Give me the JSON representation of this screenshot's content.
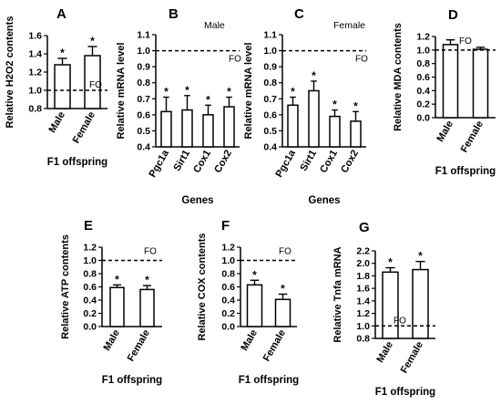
{
  "chart_data": [
    {
      "panel": "A",
      "type": "bar",
      "subtitle": "",
      "ylabel": "Relative H2O2 contents",
      "xlabel": "F1 offspring",
      "categories": [
        "Male",
        "Female"
      ],
      "values": [
        1.28,
        1.38
      ],
      "errors": [
        0.07,
        0.1
      ],
      "significance": [
        "*",
        "*"
      ],
      "ylim": [
        0.8,
        1.6
      ],
      "yticks": [
        "0.8",
        "1.0",
        "1.2",
        "1.4",
        "1.6"
      ],
      "reference_line": 1.0,
      "reference_label": "FO"
    },
    {
      "panel": "B",
      "type": "bar",
      "subtitle": "Male",
      "ylabel": "Relative mRNA level",
      "xlabel": "Genes",
      "categories": [
        "Pgc1a",
        "Sirt1",
        "Cox1",
        "Cox2"
      ],
      "values": [
        0.62,
        0.63,
        0.6,
        0.65
      ],
      "errors": [
        0.09,
        0.09,
        0.06,
        0.06
      ],
      "significance": [
        "*",
        "*",
        "*",
        "*"
      ],
      "ylim": [
        0.4,
        1.1
      ],
      "yticks": [
        "0.4",
        "0.5",
        "0.6",
        "0.7",
        "0.8",
        "0.9",
        "1.0",
        "1.1"
      ],
      "reference_line": 1.0,
      "reference_label": "FO"
    },
    {
      "panel": "C",
      "type": "bar",
      "subtitle": "Female",
      "ylabel": "Relative mRNA level",
      "xlabel": "Genes",
      "categories": [
        "Pgc1a",
        "Sirt1",
        "Cox1",
        "Cox2"
      ],
      "values": [
        0.66,
        0.75,
        0.59,
        0.56
      ],
      "errors": [
        0.05,
        0.06,
        0.04,
        0.06
      ],
      "significance": [
        "*",
        "*",
        "*",
        "*"
      ],
      "ylim": [
        0.4,
        1.1
      ],
      "yticks": [
        "0.4",
        "0.5",
        "0.6",
        "0.7",
        "0.8",
        "0.9",
        "1.0",
        "1.1"
      ],
      "reference_line": 1.0,
      "reference_label": "FO"
    },
    {
      "panel": "D",
      "type": "bar",
      "subtitle": "",
      "ylabel": "Relative MDA contents",
      "xlabel": "F1 offspring",
      "categories": [
        "Male",
        "Female"
      ],
      "values": [
        1.08,
        1.01
      ],
      "errors": [
        0.07,
        0.03
      ],
      "significance": [
        "",
        ""
      ],
      "ylim": [
        0.0,
        1.2
      ],
      "yticks": [
        "0.0",
        "0.2",
        "0.4",
        "0.6",
        "0.8",
        "1.0",
        "1.2"
      ],
      "reference_line": 1.0,
      "reference_label": "FO"
    },
    {
      "panel": "E",
      "type": "bar",
      "subtitle": "",
      "ylabel": "Relative ATP contents",
      "xlabel": "F1 offspring",
      "categories": [
        "Male",
        "Female"
      ],
      "values": [
        0.59,
        0.56
      ],
      "errors": [
        0.04,
        0.06
      ],
      "significance": [
        "*",
        "*"
      ],
      "ylim": [
        0.0,
        1.2
      ],
      "yticks": [
        "0.0",
        "0.2",
        "0.4",
        "0.6",
        "0.8",
        "1.0",
        "1.2"
      ],
      "reference_line": 1.0,
      "reference_label": "FO"
    },
    {
      "panel": "F",
      "type": "bar",
      "subtitle": "",
      "ylabel": "Relative COX contents",
      "xlabel": "F1 offspring",
      "categories": [
        "Male",
        "Female"
      ],
      "values": [
        0.63,
        0.41
      ],
      "errors": [
        0.07,
        0.08
      ],
      "significance": [
        "*",
        "*"
      ],
      "ylim": [
        0.0,
        1.2
      ],
      "yticks": [
        "0.0",
        "0.2",
        "0.4",
        "0.6",
        "0.8",
        "1.0",
        "1.2"
      ],
      "reference_line": 1.0,
      "reference_label": "FO"
    },
    {
      "panel": "G",
      "type": "bar",
      "subtitle": "",
      "ylabel": "Relative Tnfa mRNA",
      "xlabel": "F1 offspring",
      "categories": [
        "Male",
        "Female"
      ],
      "values": [
        1.86,
        1.9
      ],
      "errors": [
        0.07,
        0.13
      ],
      "significance": [
        "*",
        "*"
      ],
      "ylim": [
        0.8,
        2.2
      ],
      "yticks": [
        "0.8",
        "1.0",
        "1.2",
        "1.4",
        "1.6",
        "1.8",
        "2.0",
        "2.2"
      ],
      "reference_line": 1.0,
      "reference_label": "FO"
    }
  ]
}
